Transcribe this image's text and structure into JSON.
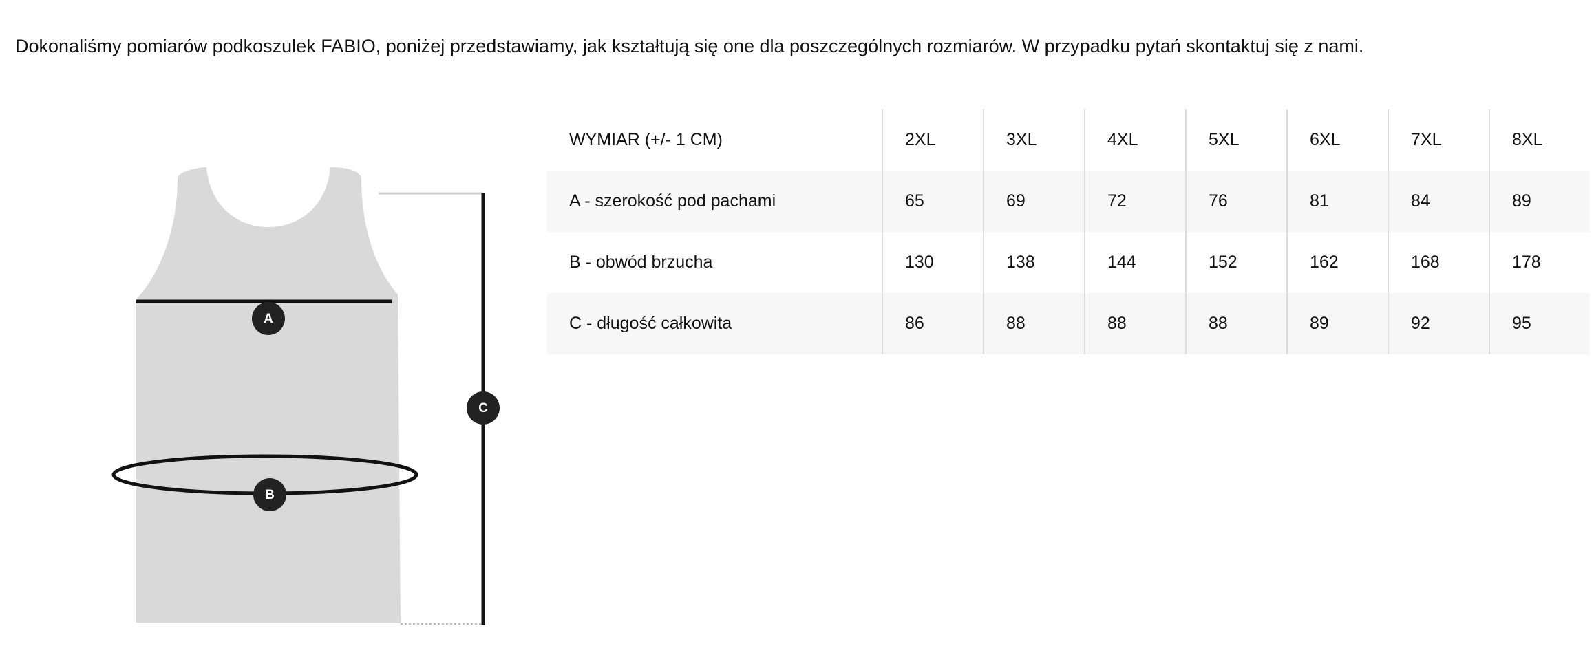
{
  "intro": "Dokonaliśmy pomiarów podkoszulek FABIO, poniżej przedstawiamy, jak kształtują się one dla poszczególnych rozmiarów. W przypadku pytań skontaktuj się z nami.",
  "diagram": {
    "labels": [
      "A",
      "B",
      "C"
    ]
  },
  "table": {
    "header": [
      "WYMIAR (+/- 1 CM)",
      "2XL",
      "3XL",
      "4XL",
      "5XL",
      "6XL",
      "7XL",
      "8XL"
    ],
    "rows": [
      [
        "A - szerokość pod pachami",
        65,
        69,
        72,
        76,
        81,
        84,
        89
      ],
      [
        "B - obwód brzucha",
        130,
        138,
        144,
        152,
        162,
        168,
        178
      ],
      [
        "C - długość całkowita",
        86,
        88,
        88,
        88,
        89,
        92,
        95
      ]
    ]
  }
}
